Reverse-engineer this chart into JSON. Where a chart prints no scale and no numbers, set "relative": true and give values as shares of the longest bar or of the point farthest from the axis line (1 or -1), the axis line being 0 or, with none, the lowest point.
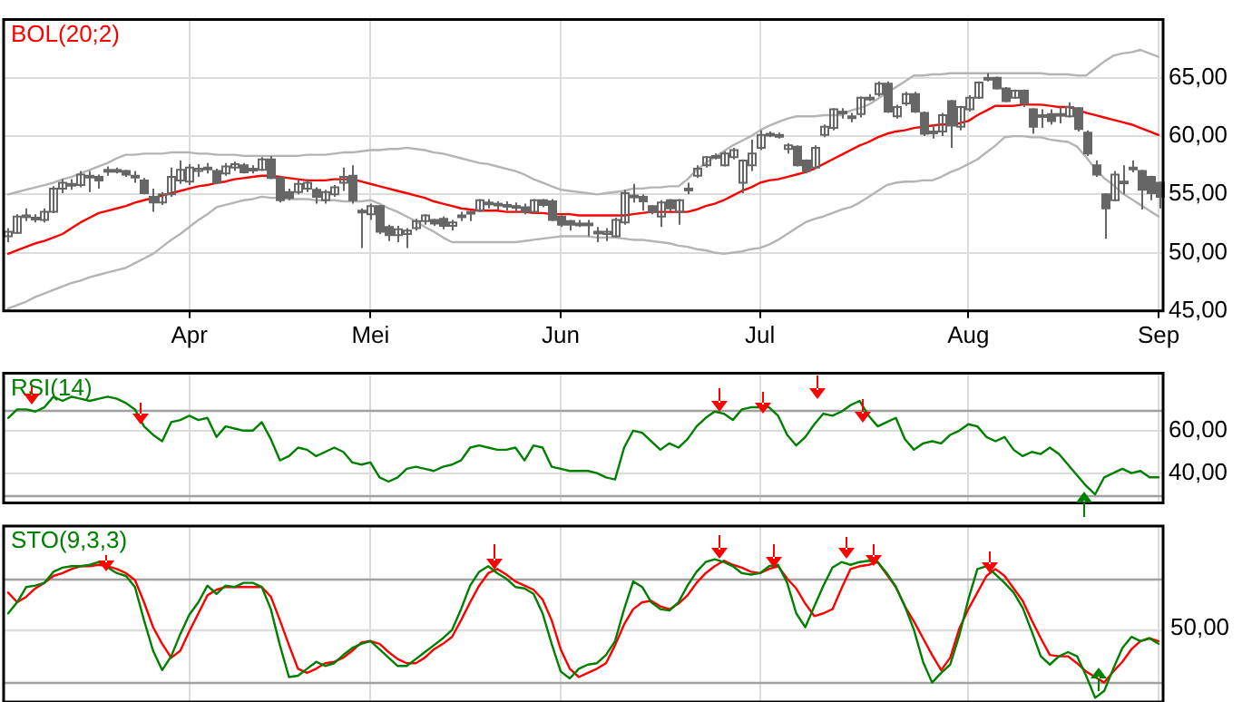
{
  "chart_data": [
    {
      "type": "candlestick",
      "legend": "top left",
      "grid": true,
      "color": "#666666",
      "categories": [
        null,
        null,
        null,
        null,
        null,
        null,
        null,
        null,
        null,
        null,
        null,
        null,
        null,
        null,
        null,
        null,
        null,
        null,
        null,
        null,
        "Apr",
        null,
        null,
        null,
        null,
        null,
        null,
        null,
        null,
        null,
        null,
        null,
        null,
        null,
        null,
        null,
        null,
        null,
        null,
        null,
        "Mei",
        null,
        null,
        null,
        null,
        null,
        null,
        null,
        null,
        null,
        null,
        null,
        null,
        null,
        null,
        null,
        null,
        null,
        null,
        null,
        null,
        "Jun",
        null,
        null,
        null,
        null,
        null,
        null,
        null,
        null,
        null,
        null,
        null,
        null,
        null,
        null,
        null,
        null,
        null,
        null,
        null,
        null,
        null,
        "Jul",
        null,
        null,
        null,
        null,
        null,
        null,
        null,
        null,
        null,
        null,
        null,
        null,
        null,
        null,
        null,
        null,
        null,
        null,
        null,
        null,
        null,
        null,
        "Aug",
        null,
        null,
        null,
        null,
        null,
        null,
        null,
        null,
        null,
        null,
        null,
        null,
        null,
        null,
        null,
        null,
        null,
        null,
        null,
        null,
        "Sep"
      ],
      "ohlc": [
        [
          51.4,
          52.1,
          50.9,
          51.8
        ],
        [
          51.7,
          53.3,
          51.6,
          53.1
        ],
        [
          53.1,
          53.8,
          52.7,
          53.2
        ],
        [
          53.0,
          53.3,
          52.6,
          52.9
        ],
        [
          52.8,
          53.8,
          52.6,
          53.5
        ],
        [
          53.5,
          55.7,
          53.4,
          55.5
        ],
        [
          55.5,
          56.3,
          55.1,
          56.0
        ],
        [
          55.8,
          56.3,
          55.4,
          55.9
        ],
        [
          55.8,
          57.0,
          55.6,
          56.7
        ],
        [
          56.5,
          57.0,
          55.2,
          56.6
        ],
        [
          56.5,
          56.7,
          55.5,
          56.2
        ],
        [
          57.0,
          57.4,
          56.6,
          57.1
        ],
        [
          57.1,
          57.3,
          56.8,
          57.0
        ],
        [
          57.0,
          57.1,
          56.5,
          56.7
        ],
        [
          56.6,
          57.0,
          56.0,
          56.5
        ],
        [
          56.2,
          56.4,
          55.0,
          55.1
        ],
        [
          54.8,
          55.5,
          53.5,
          54.3
        ],
        [
          54.3,
          55.2,
          54.1,
          55.0
        ],
        [
          55.0,
          57.3,
          54.8,
          56.5
        ],
        [
          56.2,
          57.9,
          55.9,
          57.1
        ],
        [
          56.1,
          57.6,
          55.8,
          57.3
        ],
        [
          57.0,
          57.6,
          56.5,
          57.2
        ],
        [
          57.3,
          57.7,
          56.8,
          57.2
        ],
        [
          57.0,
          57.2,
          55.9,
          56.0
        ],
        [
          56.8,
          57.7,
          56.6,
          57.4
        ],
        [
          57.3,
          57.8,
          57.0,
          57.6
        ],
        [
          57.5,
          57.7,
          56.8,
          56.9
        ],
        [
          57.2,
          57.5,
          56.8,
          57.1
        ],
        [
          57.1,
          58.2,
          57.0,
          58.0
        ],
        [
          58.0,
          58.3,
          56.3,
          56.4
        ],
        [
          56.4,
          56.6,
          54.3,
          54.5
        ],
        [
          55.2,
          55.5,
          54.5,
          54.7
        ],
        [
          55.2,
          56.2,
          55.0,
          55.9
        ],
        [
          55.5,
          56.3,
          55.2,
          56.0
        ],
        [
          55.4,
          55.6,
          54.2,
          54.8
        ],
        [
          54.5,
          55.4,
          54.2,
          55.2
        ],
        [
          55.0,
          55.8,
          54.8,
          55.6
        ],
        [
          56.0,
          57.3,
          55.3,
          56.5
        ],
        [
          56.6,
          57.5,
          54.2,
          54.5
        ],
        [
          53.5,
          53.8,
          50.4,
          53.6
        ],
        [
          53.3,
          54.2,
          52.8,
          54.0
        ],
        [
          54.0,
          54.1,
          51.6,
          51.8
        ],
        [
          52.2,
          52.4,
          51.0,
          51.5
        ],
        [
          51.5,
          52.3,
          50.9,
          52.0
        ],
        [
          51.6,
          52.1,
          50.4,
          51.9
        ],
        [
          52.1,
          52.9,
          51.9,
          52.7
        ],
        [
          52.7,
          53.3,
          52.4,
          53.2
        ],
        [
          52.8,
          52.9,
          52.3,
          52.5
        ],
        [
          52.9,
          53.1,
          52.0,
          52.3
        ],
        [
          52.3,
          52.8,
          51.9,
          52.6
        ],
        [
          53.1,
          53.5,
          52.7,
          53.2
        ],
        [
          53.4,
          53.6,
          52.7,
          53.5
        ],
        [
          53.6,
          54.6,
          53.5,
          54.5
        ],
        [
          54.3,
          54.6,
          53.8,
          54.3
        ],
        [
          54.2,
          54.4,
          53.7,
          54.1
        ],
        [
          54.1,
          54.4,
          53.6,
          54.1
        ],
        [
          54.0,
          54.3,
          53.5,
          54.0
        ],
        [
          53.9,
          54.2,
          53.3,
          53.5
        ],
        [
          53.5,
          54.6,
          53.4,
          54.5
        ],
        [
          54.5,
          54.6,
          53.9,
          54.1
        ],
        [
          54.4,
          54.6,
          52.7,
          52.8
        ],
        [
          53.1,
          53.2,
          52.2,
          52.4
        ],
        [
          52.7,
          52.8,
          51.9,
          52.4
        ],
        [
          52.5,
          52.8,
          52.2,
          52.5
        ],
        [
          52.5,
          52.8,
          51.4,
          52.4
        ],
        [
          51.8,
          52.2,
          50.9,
          51.7
        ],
        [
          51.6,
          52.1,
          51.0,
          51.8
        ],
        [
          51.4,
          53.0,
          51.3,
          52.8
        ],
        [
          52.6,
          55.4,
          52.4,
          55.1
        ],
        [
          54.9,
          55.9,
          54.3,
          54.9
        ],
        [
          54.8,
          55.0,
          53.6,
          54.4
        ],
        [
          54.0,
          54.1,
          53.3,
          53.5
        ],
        [
          53.1,
          54.5,
          52.2,
          54.3
        ],
        [
          54.5,
          54.6,
          53.5,
          53.8
        ],
        [
          53.5,
          54.6,
          52.4,
          54.5
        ],
        [
          55.5,
          56.0,
          55.0,
          55.5
        ],
        [
          56.6,
          57.5,
          56.4,
          57.2
        ],
        [
          57.5,
          58.3,
          57.3,
          58.2
        ],
        [
          58.3,
          58.5,
          58.0,
          58.3
        ],
        [
          57.5,
          58.7,
          57.4,
          58.5
        ],
        [
          58.2,
          59.0,
          58.0,
          58.8
        ],
        [
          56.0,
          58.0,
          55.1,
          57.9
        ],
        [
          57.5,
          59.7,
          57.0,
          58.5
        ],
        [
          59.0,
          60.5,
          58.8,
          60.1
        ],
        [
          60.2,
          60.4,
          59.9,
          60.2
        ],
        [
          60.0,
          60.3,
          59.8,
          60.1
        ],
        [
          58.9,
          59.4,
          58.5,
          59.2
        ],
        [
          59.1,
          59.2,
          57.4,
          57.5
        ],
        [
          57.9,
          58.0,
          56.8,
          57.0
        ],
        [
          57.3,
          59.2,
          57.2,
          59.0
        ],
        [
          60.1,
          61.0,
          59.9,
          60.8
        ],
        [
          60.7,
          62.4,
          60.5,
          62.3
        ],
        [
          62.0,
          62.4,
          61.5,
          62.1
        ],
        [
          61.7,
          62.0,
          61.2,
          61.7
        ],
        [
          61.9,
          63.4,
          61.6,
          63.3
        ],
        [
          63.3,
          63.6,
          63.0,
          63.3
        ],
        [
          63.6,
          64.7,
          63.4,
          64.5
        ],
        [
          64.5,
          64.7,
          62.0,
          62.1
        ],
        [
          61.7,
          62.7,
          61.5,
          62.5
        ],
        [
          62.8,
          63.8,
          62.6,
          63.6
        ],
        [
          63.6,
          63.8,
          62.0,
          62.1
        ],
        [
          62.0,
          62.1,
          60.0,
          60.2
        ],
        [
          60.3,
          61.0,
          59.8,
          60.4
        ],
        [
          60.4,
          62.0,
          60.0,
          61.8
        ],
        [
          63.0,
          63.1,
          59.0,
          60.9
        ],
        [
          60.8,
          62.6,
          60.5,
          62.5
        ],
        [
          62.3,
          63.5,
          62.1,
          63.3
        ],
        [
          63.3,
          64.7,
          63.2,
          64.6
        ],
        [
          64.9,
          65.4,
          64.7,
          65.0
        ],
        [
          65.0,
          65.1,
          64.0,
          64.1
        ],
        [
          64.1,
          64.2,
          62.9,
          63.0
        ],
        [
          63.3,
          64.0,
          63.2,
          63.9
        ],
        [
          63.9,
          64.0,
          62.5,
          62.8
        ],
        [
          62.3,
          62.4,
          60.2,
          60.8
        ],
        [
          61.8,
          62.3,
          60.7,
          61.8
        ],
        [
          61.9,
          62.3,
          61.0,
          61.3
        ],
        [
          61.9,
          62.5,
          61.1,
          61.9
        ],
        [
          61.7,
          62.9,
          61.6,
          62.5
        ],
        [
          62.4,
          62.5,
          60.4,
          60.6
        ],
        [
          60.3,
          60.5,
          58.3,
          58.5
        ],
        [
          57.5,
          57.9,
          56.5,
          56.7
        ],
        [
          55.0,
          55.1,
          51.2,
          53.8
        ],
        [
          54.5,
          57.0,
          54.4,
          56.7
        ],
        [
          56.1,
          57.5,
          55.0,
          56.1
        ],
        [
          57.3,
          57.9,
          56.9,
          57.3
        ],
        [
          57.0,
          57.1,
          53.7,
          55.4
        ],
        [
          56.5,
          56.6,
          54.5,
          55.1
        ],
        [
          56.0,
          56.1,
          53.8,
          54.8
        ]
      ],
      "series": [
        {
          "name": "BOL(20;2)",
          "type": "line",
          "color": "#ff0000",
          "values": [
            49.9,
            50.2,
            50.5,
            50.8,
            51.0,
            51.3,
            51.6,
            52.1,
            52.6,
            53.0,
            53.4,
            53.6,
            53.8,
            54.0,
            54.3,
            54.5,
            54.7,
            54.9,
            55.1,
            55.3,
            55.5,
            55.7,
            55.8,
            56.0,
            56.1,
            56.3,
            56.4,
            56.5,
            56.6,
            56.6,
            56.5,
            56.4,
            56.3,
            56.2,
            56.2,
            56.2,
            56.3,
            56.3,
            56.3,
            56.1,
            55.9,
            55.7,
            55.5,
            55.3,
            55.1,
            54.9,
            54.7,
            54.4,
            54.2,
            54.0,
            53.8,
            53.7,
            53.6,
            53.6,
            53.6,
            53.5,
            53.5,
            53.5,
            53.4,
            53.4,
            53.3,
            53.3,
            53.3,
            53.2,
            53.2,
            53.2,
            53.2,
            53.2,
            53.2,
            53.3,
            53.4,
            53.5,
            53.5,
            53.5,
            53.5,
            53.5,
            53.7,
            54.0,
            54.2,
            54.5,
            54.9,
            55.3,
            55.6,
            56.0,
            56.2,
            56.3,
            56.5,
            56.7,
            56.9,
            57.2,
            57.6,
            58.0,
            58.4,
            58.8,
            59.2,
            59.5,
            59.9,
            60.2,
            60.4,
            60.5,
            60.7,
            60.8,
            60.9,
            61.0,
            61.0,
            61.1,
            61.3,
            61.8,
            62.2,
            62.6,
            62.6,
            62.6,
            62.7,
            62.7,
            62.7,
            62.6,
            62.5,
            62.5,
            62.3,
            62.0,
            61.8,
            61.6,
            61.4,
            61.2,
            61.0,
            60.7,
            60.4,
            60.1
          ]
        },
        {
          "type": "line",
          "color": "#b4b4b4",
          "values": [
            55.0,
            55.2,
            55.4,
            55.6,
            55.8,
            56.0,
            56.3,
            56.5,
            56.8,
            57.1,
            57.4,
            57.7,
            58.1,
            58.4,
            58.4,
            58.5,
            58.5,
            58.5,
            58.6,
            58.6,
            58.6,
            58.5,
            58.5,
            58.4,
            58.4,
            58.4,
            58.3,
            58.3,
            58.3,
            58.3,
            58.3,
            58.3,
            58.3,
            58.4,
            58.4,
            58.4,
            58.5,
            58.6,
            58.6,
            58.7,
            58.8,
            58.8,
            58.9,
            58.9,
            59.0,
            58.9,
            58.8,
            58.6,
            58.5,
            58.3,
            58.1,
            57.9,
            57.7,
            57.6,
            57.4,
            57.2,
            57.0,
            56.7,
            56.3,
            56.0,
            55.7,
            55.4,
            55.3,
            55.2,
            55.1,
            55.0,
            55.1,
            55.2,
            55.3,
            55.5,
            55.5,
            55.6,
            55.6,
            55.7,
            55.7,
            56.3,
            57.1,
            57.7,
            58.2,
            58.7,
            59.2,
            59.6,
            60.0,
            60.5,
            60.9,
            61.2,
            61.5,
            61.7,
            61.7,
            61.7,
            61.8,
            61.8,
            61.8,
            62.2,
            62.4,
            62.7,
            63.2,
            63.7,
            64.2,
            64.7,
            65.2,
            65.2,
            65.3,
            65.3,
            65.4,
            65.4,
            65.4,
            65.4,
            65.4,
            65.4,
            65.4,
            65.4,
            65.4,
            65.4,
            65.4,
            65.3,
            65.3,
            65.3,
            65.2,
            65.2,
            65.8,
            66.4,
            66.9,
            67.1,
            67.2,
            67.4,
            67.1,
            66.8
          ]
        },
        {
          "type": "line",
          "color": "#b4b4b4",
          "values": [
            45.2,
            45.5,
            45.8,
            46.2,
            46.5,
            46.8,
            47.1,
            47.4,
            47.6,
            47.9,
            48.1,
            48.3,
            48.5,
            48.7,
            49.1,
            49.5,
            49.9,
            50.5,
            51.1,
            51.6,
            52.2,
            52.8,
            53.3,
            53.9,
            54.1,
            54.3,
            54.5,
            54.6,
            54.8,
            54.7,
            54.7,
            54.6,
            54.6,
            54.6,
            54.5,
            54.5,
            54.5,
            54.4,
            54.4,
            54.4,
            54.5,
            54.2,
            53.8,
            53.5,
            53.1,
            52.7,
            52.2,
            51.8,
            51.3,
            50.9,
            50.9,
            50.9,
            50.9,
            50.9,
            50.9,
            50.9,
            50.9,
            51.0,
            51.1,
            51.2,
            51.3,
            51.4,
            51.4,
            51.4,
            51.4,
            51.3,
            51.3,
            51.3,
            51.2,
            51.1,
            51.1,
            51.0,
            50.9,
            50.8,
            50.6,
            50.5,
            50.3,
            50.2,
            50.0,
            49.9,
            50.0,
            50.1,
            50.3,
            50.4,
            50.7,
            51.1,
            51.6,
            52.1,
            52.6,
            52.9,
            53.1,
            53.4,
            53.7,
            53.9,
            54.3,
            54.8,
            55.3,
            55.8,
            56.0,
            56.1,
            56.1,
            56.2,
            56.2,
            56.5,
            56.9,
            57.2,
            57.6,
            58.0,
            58.6,
            59.2,
            59.9,
            60.0,
            60.0,
            59.9,
            59.9,
            59.7,
            59.6,
            59.5,
            59.1,
            58.2,
            57.2,
            56.4,
            55.8,
            55.1,
            54.6,
            54.1,
            53.6,
            53.1
          ]
        }
      ],
      "ylim": [
        45,
        70
      ],
      "yticks": [
        {
          "value": 45,
          "label": "45,00"
        },
        {
          "value": 50,
          "label": "50,00"
        },
        {
          "value": 55,
          "label": "55,00"
        },
        {
          "value": 60,
          "label": "60,00"
        },
        {
          "value": 65,
          "label": "65,00"
        }
      ]
    },
    {
      "type": "line",
      "legend": "top left",
      "grid": true,
      "tick_labels": "y",
      "categories": [
        null,
        null,
        null,
        null,
        null,
        null,
        null,
        null,
        null,
        null,
        null,
        null,
        null,
        null,
        null,
        null,
        null,
        null,
        null,
        null,
        null,
        null,
        null,
        null,
        null,
        null,
        null,
        null,
        null,
        null,
        null,
        null,
        null,
        null,
        null,
        null,
        null,
        null,
        null,
        null,
        null,
        null,
        null,
        null,
        null,
        null,
        null,
        null,
        null,
        null,
        null,
        null,
        null,
        null,
        null,
        null,
        null,
        null,
        null,
        null,
        null,
        null,
        null,
        null,
        null,
        null,
        null,
        null,
        null,
        null,
        null,
        null,
        null,
        null,
        null,
        null,
        null,
        null,
        null,
        null,
        null,
        null,
        null,
        null,
        null,
        null,
        null,
        null,
        null,
        null,
        null,
        null,
        null,
        null,
        null,
        null,
        null,
        null,
        null,
        null,
        null,
        null,
        null,
        null,
        null,
        null,
        null,
        null,
        null,
        null,
        null,
        null,
        null,
        null,
        null,
        null,
        null,
        null,
        null,
        null,
        null,
        null,
        null,
        null,
        null,
        null,
        null,
        null
      ],
      "series": [
        {
          "name": "RSI(14)",
          "color": "#008000",
          "values": [
            66,
            70,
            70,
            69,
            71,
            76,
            74,
            76,
            75,
            74,
            75,
            76,
            75,
            73,
            70,
            62,
            58,
            55,
            64,
            65,
            67,
            65,
            66,
            57,
            62,
            61,
            60,
            60,
            64,
            56,
            46,
            48,
            52,
            51,
            48,
            50,
            52,
            50,
            45,
            44,
            45,
            38,
            36,
            38,
            42,
            43,
            42,
            41,
            43,
            44,
            46,
            52,
            53,
            52,
            51,
            51,
            52,
            46,
            53,
            52,
            43,
            42,
            41,
            41,
            41,
            40,
            38,
            37,
            52,
            60,
            59,
            55,
            51,
            54,
            52,
            56,
            62,
            66,
            69,
            68,
            65,
            70,
            71,
            71,
            71,
            67,
            58,
            53,
            57,
            63,
            68,
            67,
            69,
            72,
            74,
            67,
            62,
            64,
            66,
            56,
            51,
            54,
            55,
            54,
            58,
            60,
            63,
            62,
            57,
            55,
            57,
            51,
            48,
            50,
            49,
            52,
            49,
            44,
            39,
            34,
            30,
            38,
            40,
            42,
            40,
            41,
            38,
            38
          ]
        }
      ],
      "ref_lines": [
        {
          "axis": "y",
          "value": 70,
          "color": "#a0a0a0"
        },
        {
          "axis": "y",
          "value": 30,
          "color": "#a0a0a0"
        }
      ],
      "ylim": [
        26,
        87
      ],
      "yticks": [
        {
          "value": 40,
          "label": "40,00"
        },
        {
          "value": 60,
          "label": "60,00"
        }
      ]
    },
    {
      "type": "line",
      "legend": "top left",
      "grid": "x",
      "tick_labels": "y",
      "relative": true,
      "annotations": [
        "50,00"
      ],
      "categories": [
        null,
        null,
        null,
        null,
        null,
        null,
        null,
        null,
        null,
        null,
        null,
        null,
        null,
        null,
        null,
        null,
        null,
        null,
        null,
        null,
        null,
        null,
        null,
        null,
        null,
        null,
        null,
        null,
        null,
        null,
        null,
        null,
        null,
        null,
        null,
        null,
        null,
        null,
        null,
        null,
        null,
        null,
        null,
        null,
        null,
        null,
        null,
        null,
        null,
        null,
        null,
        null,
        null,
        null,
        null,
        null,
        null,
        null,
        null,
        null,
        null,
        null,
        null,
        null,
        null,
        null,
        null,
        null,
        null,
        null,
        null,
        null,
        null,
        null,
        null,
        null,
        null,
        null,
        null,
        null,
        null,
        null,
        null,
        null,
        null,
        null,
        null,
        null,
        null,
        null,
        null,
        null,
        null,
        null,
        null,
        null,
        null,
        null,
        null,
        null,
        null,
        null,
        null,
        null,
        null,
        null,
        null,
        null,
        null,
        null,
        null,
        null,
        null,
        null,
        null,
        null,
        null,
        null,
        null,
        null,
        null,
        null,
        null,
        null,
        null,
        null,
        null,
        null
      ],
      "series": [
        {
          "name": "STO(9,3,3)",
          "color": "#008000",
          "values": [
            0.61,
            0.69,
            0.8,
            0.81,
            0.83,
            0.91,
            0.94,
            0.95,
            0.95,
            0.96,
            0.98,
            0.94,
            0.9,
            0.88,
            0.8,
            0.56,
            0.34,
            0.2,
            0.3,
            0.46,
            0.6,
            0.69,
            0.81,
            0.75,
            0.81,
            0.8,
            0.83,
            0.83,
            0.8,
            0.64,
            0.38,
            0.15,
            0.16,
            0.21,
            0.26,
            0.23,
            0.25,
            0.31,
            0.36,
            0.39,
            0.41,
            0.35,
            0.29,
            0.23,
            0.23,
            0.28,
            0.33,
            0.38,
            0.43,
            0.49,
            0.64,
            0.81,
            0.91,
            0.95,
            0.9,
            0.86,
            0.8,
            0.79,
            0.75,
            0.61,
            0.39,
            0.19,
            0.14,
            0.21,
            0.24,
            0.25,
            0.31,
            0.41,
            0.64,
            0.84,
            0.8,
            0.69,
            0.64,
            0.63,
            0.69,
            0.81,
            0.91,
            0.98,
            1,
            0.98,
            0.95,
            0.9,
            0.89,
            0.9,
            0.95,
            0.96,
            0.83,
            0.61,
            0.51,
            0.66,
            0.81,
            0.94,
            0.98,
            0.96,
            0.98,
            0.99,
            0.98,
            0.9,
            0.8,
            0.66,
            0.49,
            0.26,
            0.11,
            0.18,
            0.24,
            0.45,
            0.71,
            0.93,
            0.95,
            0.89,
            0.83,
            0.76,
            0.65,
            0.48,
            0.3,
            0.24,
            0.3,
            0.33,
            0.3,
            0.16,
            0,
            0.05,
            0.21,
            0.36,
            0.44,
            0.41,
            0.43,
            0.39
          ]
        },
        {
          "color": "#ff0000",
          "values": [
            0.76,
            0.69,
            0.73,
            0.79,
            0.83,
            0.88,
            0.9,
            0.93,
            0.95,
            0.95,
            0.96,
            0.95,
            0.93,
            0.9,
            0.85,
            0.69,
            0.51,
            0.39,
            0.29,
            0.34,
            0.48,
            0.61,
            0.74,
            0.78,
            0.8,
            0.8,
            0.8,
            0.8,
            0.8,
            0.73,
            0.56,
            0.38,
            0.21,
            0.18,
            0.21,
            0.25,
            0.26,
            0.29,
            0.34,
            0.4,
            0.41,
            0.39,
            0.33,
            0.28,
            0.25,
            0.25,
            0.29,
            0.35,
            0.39,
            0.44,
            0.56,
            0.69,
            0.81,
            0.9,
            0.93,
            0.89,
            0.84,
            0.81,
            0.78,
            0.71,
            0.56,
            0.35,
            0.21,
            0.15,
            0.18,
            0.21,
            0.25,
            0.38,
            0.53,
            0.64,
            0.69,
            0.7,
            0.66,
            0.64,
            0.68,
            0.74,
            0.83,
            0.9,
            0.95,
            0.99,
            0.96,
            0.94,
            0.91,
            0.9,
            0.93,
            0.95,
            0.86,
            0.79,
            0.68,
            0.59,
            0.61,
            0.64,
            0.79,
            0.93,
            0.95,
            0.96,
            0.98,
            0.89,
            0.8,
            0.66,
            0.55,
            0.43,
            0.31,
            0.2,
            0.29,
            0.5,
            0.64,
            0.76,
            0.88,
            0.93,
            0.88,
            0.79,
            0.7,
            0.56,
            0.43,
            0.31,
            0.3,
            0.3,
            0.25,
            0.19,
            0.15,
            0.11,
            0.19,
            0.26,
            0.35,
            0.41,
            0.43,
            0.41
          ]
        }
      ],
      "ref_lines": [
        {
          "axis": "y",
          "value": 0.86,
          "color": "#a0a0a0"
        },
        {
          "axis": "y",
          "value": 0.49,
          "color": "#dcdcdc"
        },
        {
          "axis": "y",
          "value": 0.11,
          "color": "#a0a0a0"
        }
      ]
    }
  ]
}
